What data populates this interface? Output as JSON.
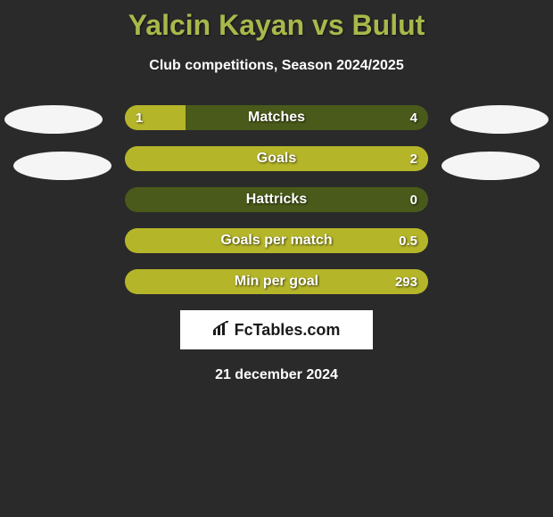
{
  "title": "Yalcin Kayan vs Bulut",
  "subtitle": "Club competitions, Season 2024/2025",
  "date": "21 december 2024",
  "logo": "FcTables.com",
  "colors": {
    "title": "#a9b84a",
    "background": "#2a2a2a",
    "bar_bg": "#4a5a1a",
    "bar_fill": "#b5b52a",
    "text": "#ffffff",
    "avatar": "#f5f5f5"
  },
  "bars": [
    {
      "label": "Matches",
      "left_val": "1",
      "right_val": "4",
      "left_pct": 20,
      "right_pct": 0
    },
    {
      "label": "Goals",
      "left_val": "",
      "right_val": "2",
      "left_pct": 0,
      "right_pct": 100
    },
    {
      "label": "Hattricks",
      "left_val": "",
      "right_val": "0",
      "left_pct": 0,
      "right_pct": 0
    },
    {
      "label": "Goals per match",
      "left_val": "",
      "right_val": "0.5",
      "left_pct": 0,
      "right_pct": 100
    },
    {
      "label": "Min per goal",
      "left_val": "",
      "right_val": "293",
      "left_pct": 0,
      "right_pct": 100
    }
  ]
}
